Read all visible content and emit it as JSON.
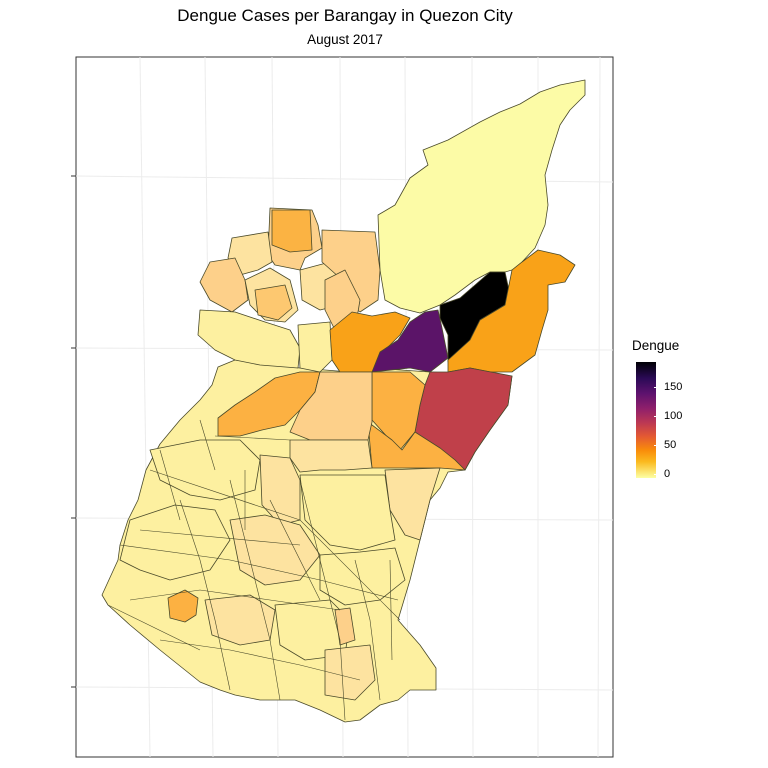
{
  "title": "Dengue Cases per Barangay in Quezon City",
  "subtitle": "August 2017",
  "legend": {
    "title": "Dengue",
    "ticks": [
      "150",
      "100",
      "50",
      "0"
    ],
    "scale": "inferno-reversed",
    "min": 0,
    "max": 200
  },
  "colors": {
    "very_low": "#fcfba6",
    "low": "#fde49c",
    "low_mid": "#fdd08a",
    "mid": "#fcb142",
    "mid_high": "#f9a218",
    "high": "#c0404a",
    "very_high": "#5b1468",
    "max": "#000000"
  },
  "regions": [
    {
      "name": "north-region",
      "level": "very_low"
    },
    {
      "name": "northeast-region",
      "level": "mid_high"
    },
    {
      "name": "max-region",
      "level": "max"
    },
    {
      "name": "very-high-region",
      "level": "very_high"
    },
    {
      "name": "orange-center-region",
      "level": "mid_high"
    },
    {
      "name": "red-region",
      "level": "high"
    },
    {
      "name": "south-orange-region",
      "level": "mid"
    },
    {
      "name": "west-orange-region",
      "level": "mid"
    },
    {
      "name": "small-orange-region",
      "level": "mid"
    }
  ]
}
